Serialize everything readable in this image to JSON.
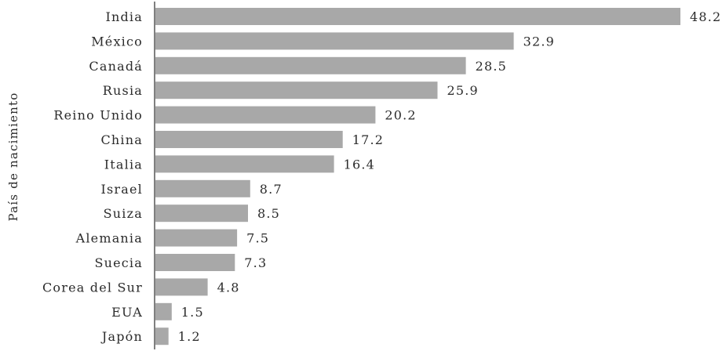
{
  "chart_data": {
    "type": "bar",
    "orientation": "horizontal",
    "ylabel": "País de nacimiento",
    "xlabel": "",
    "title": "",
    "xlim": [
      0,
      48.2
    ],
    "grid": false,
    "colors": {
      "bar": "#a8a8a8",
      "text": "#2b2b2b"
    },
    "categories": [
      "India",
      "México",
      "Canadá",
      "Rusia",
      "Reino Unido",
      "China",
      "Italia",
      "Israel",
      "Suiza",
      "Alemania",
      "Suecia",
      "Corea del Sur",
      "EUA",
      "Japón"
    ],
    "values": [
      48.2,
      32.9,
      28.5,
      25.9,
      20.2,
      17.2,
      16.4,
      8.7,
      8.5,
      7.5,
      7.3,
      4.8,
      1.5,
      1.2
    ],
    "value_labels": [
      "48.2",
      "32.9",
      "28.5",
      "25.9",
      "20.2",
      "17.2",
      "16.4",
      "8.7",
      "8.5",
      "7.5",
      "7.3",
      "4.8",
      "1.5",
      "1.2"
    ]
  }
}
